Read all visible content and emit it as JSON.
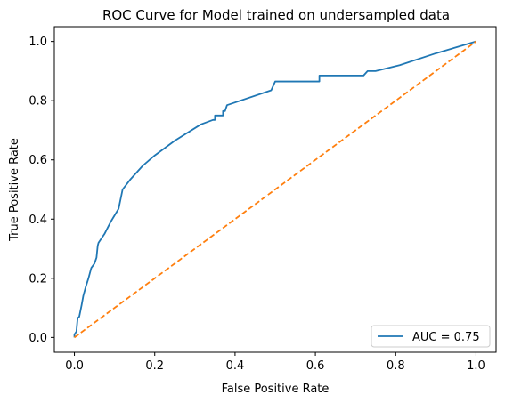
{
  "chart_data": {
    "type": "line",
    "title": "ROC Curve for Model trained on undersampled data",
    "xlabel": "False Positive Rate",
    "ylabel": "True Positive Rate",
    "xlim": [
      -0.05,
      1.05
    ],
    "ylim": [
      -0.05,
      1.05
    ],
    "xticks": [
      0.0,
      0.2,
      0.4,
      0.6,
      0.8,
      1.0
    ],
    "yticks": [
      0.0,
      0.2,
      0.4,
      0.6,
      0.8,
      1.0
    ],
    "xtick_labels": [
      "0.0",
      "0.2",
      "0.4",
      "0.6",
      "0.8",
      "1.0"
    ],
    "ytick_labels": [
      "0.0",
      "0.2",
      "0.4",
      "0.6",
      "0.8",
      "1.0"
    ],
    "grid": false,
    "legend_position": "lower-right",
    "series": [
      {
        "name": "AUC = 0.75",
        "color": "#1f77b4",
        "style": "solid",
        "x": [
          0.0,
          0.0,
          0.005,
          0.008,
          0.012,
          0.015,
          0.018,
          0.022,
          0.028,
          0.035,
          0.042,
          0.05,
          0.055,
          0.058,
          0.06,
          0.075,
          0.09,
          0.11,
          0.12,
          0.14,
          0.17,
          0.2,
          0.25,
          0.315,
          0.345,
          0.35,
          0.35,
          0.37,
          0.37,
          0.375,
          0.38,
          0.49,
          0.5,
          0.61,
          0.61,
          0.72,
          0.73,
          0.75,
          0.81,
          0.9,
          1.0
        ],
        "y": [
          0.0,
          0.01,
          0.02,
          0.065,
          0.07,
          0.09,
          0.11,
          0.14,
          0.17,
          0.2,
          0.235,
          0.25,
          0.27,
          0.31,
          0.32,
          0.35,
          0.39,
          0.435,
          0.5,
          0.535,
          0.58,
          0.615,
          0.665,
          0.72,
          0.735,
          0.735,
          0.75,
          0.75,
          0.765,
          0.765,
          0.785,
          0.835,
          0.865,
          0.865,
          0.885,
          0.885,
          0.9,
          0.9,
          0.92,
          0.96,
          1.0
        ]
      },
      {
        "name": "",
        "color": "#ff7f0e",
        "style": "dashed",
        "x": [
          0.0,
          1.0
        ],
        "y": [
          0.0,
          1.0
        ]
      }
    ]
  }
}
